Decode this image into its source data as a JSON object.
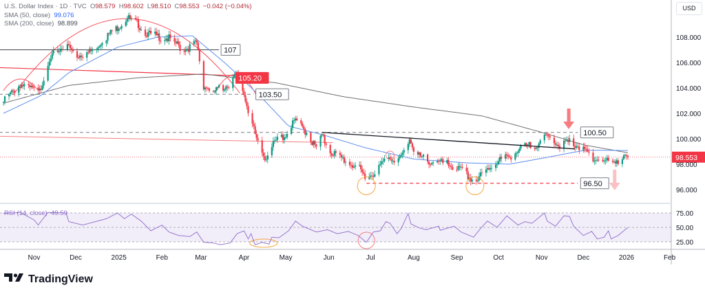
{
  "legend": {
    "symbol": "U.S. Dollar Index · 1D · TVC",
    "open_label": "O",
    "open": "98.579",
    "high_label": "H",
    "high": "98.602",
    "low_label": "L",
    "low": "98.510",
    "close_label": "C",
    "close": "98.553",
    "change": "−0.042 (−0.04%)",
    "sma50_label": "SMA (50, close)",
    "sma50_value": "99.076",
    "sma200_label": "SMA (200, close)",
    "sma200_value": "98.899",
    "rsi_label": "RSI (14, close)",
    "rsi_value": "49.59"
  },
  "currency": "USD",
  "brand": "TradingView",
  "colors": {
    "up": "#089981",
    "down": "#f23645",
    "sma50": "#5b8def",
    "sma200": "#6f6f6f",
    "rsi": "#9575cd",
    "annot_red": "#f23645",
    "circle_orange": "#f7a440"
  },
  "chart_data": {
    "type": "candlestick",
    "x_unit": "days since 2024-10-10",
    "start_date": "2024-10-10",
    "ylim": [
      95.2,
      110.6
    ],
    "price_ticks": [
      "108.000",
      "106.000",
      "104.000",
      "102.000",
      "100.000",
      "98.000",
      "96.000"
    ],
    "rsi_ticks": [
      "75.00",
      "50.00",
      "25.00"
    ],
    "rsi_levels": [
      75,
      50,
      25
    ],
    "time_ticks": [
      {
        "day": 22,
        "label": "Nov"
      },
      {
        "day": 52,
        "label": "Dec"
      },
      {
        "day": 83,
        "label": "2025"
      },
      {
        "day": 114,
        "label": "Feb"
      },
      {
        "day": 142,
        "label": "Mar"
      },
      {
        "day": 173,
        "label": "Apr"
      },
      {
        "day": 203,
        "label": "May"
      },
      {
        "day": 234,
        "label": "Jun"
      },
      {
        "day": 264,
        "label": "Jul"
      },
      {
        "day": 295,
        "label": "Aug"
      },
      {
        "day": 326,
        "label": "Sep"
      },
      {
        "day": 356,
        "label": "Oct"
      },
      {
        "day": 387,
        "label": "Nov"
      },
      {
        "day": 417,
        "label": "Dec"
      },
      {
        "day": 448,
        "label": "2026"
      },
      {
        "day": 479,
        "label": "Feb"
      }
    ],
    "close_path": [
      [
        0,
        102.9
      ],
      [
        12,
        104.3
      ],
      [
        22,
        103.8
      ],
      [
        27,
        104.2
      ],
      [
        35,
        106.5
      ],
      [
        45,
        107.5
      ],
      [
        52,
        106.5
      ],
      [
        62,
        106.8
      ],
      [
        72,
        107.8
      ],
      [
        82,
        108.8
      ],
      [
        89,
        109.5
      ],
      [
        97,
        109.0
      ],
      [
        104,
        108.2
      ],
      [
        114,
        108.0
      ],
      [
        121,
        107.8
      ],
      [
        129,
        107.0
      ],
      [
        139,
        107.5
      ],
      [
        144,
        104.2
      ],
      [
        151,
        103.7
      ],
      [
        161,
        104.2
      ],
      [
        168,
        105.0
      ],
      [
        173,
        103.5
      ],
      [
        178,
        101.5
      ],
      [
        182,
        99.8
      ],
      [
        188,
        98.5
      ],
      [
        196,
        99.8
      ],
      [
        205,
        100.5
      ],
      [
        210,
        101.5
      ],
      [
        218,
        100.5
      ],
      [
        225,
        99.2
      ],
      [
        229,
        100.2
      ],
      [
        235,
        99.0
      ],
      [
        243,
        98.5
      ],
      [
        250,
        98.0
      ],
      [
        255,
        97.8
      ],
      [
        261,
        96.8
      ],
      [
        270,
        97.8
      ],
      [
        277,
        98.6
      ],
      [
        285,
        98.3
      ],
      [
        292,
        100.0
      ],
      [
        297,
        98.7
      ],
      [
        307,
        98.2
      ],
      [
        319,
        98.0
      ],
      [
        329,
        97.5
      ],
      [
        339,
        96.6
      ],
      [
        347,
        97.5
      ],
      [
        354,
        98.2
      ],
      [
        364,
        98.6
      ],
      [
        374,
        99.3
      ],
      [
        384,
        99.6
      ],
      [
        391,
        100.2
      ],
      [
        399,
        99.5
      ],
      [
        408,
        99.8
      ],
      [
        416,
        99.2
      ],
      [
        423,
        98.6
      ],
      [
        431,
        98.2
      ],
      [
        438,
        98.3
      ],
      [
        446,
        98.4
      ],
      [
        449,
        98.553
      ]
    ],
    "sma50": [
      [
        0,
        102.0
      ],
      [
        27,
        103.4
      ],
      [
        47,
        105.2
      ],
      [
        82,
        107.2
      ],
      [
        111,
        108.0
      ],
      [
        136,
        108.1
      ],
      [
        161,
        105.8
      ],
      [
        186,
        103.2
      ],
      [
        205,
        101.0
      ],
      [
        230,
        100.3
      ],
      [
        260,
        99.3
      ],
      [
        295,
        98.4
      ],
      [
        334,
        98.1
      ],
      [
        364,
        98.0
      ],
      [
        394,
        98.6
      ],
      [
        418,
        99.1
      ],
      [
        449,
        99.076
      ]
    ],
    "sma200": [
      [
        0,
        102.8
      ],
      [
        47,
        104.2
      ],
      [
        97,
        104.8
      ],
      [
        144,
        105.1
      ],
      [
        196,
        104.4
      ],
      [
        245,
        103.3
      ],
      [
        295,
        102.5
      ],
      [
        344,
        101.8
      ],
      [
        384,
        100.6
      ],
      [
        418,
        99.5
      ],
      [
        449,
        98.899
      ]
    ],
    "rsi": [
      [
        0,
        74
      ],
      [
        12,
        76
      ],
      [
        22,
        63
      ],
      [
        25,
        54
      ],
      [
        32,
        76
      ],
      [
        45,
        75
      ],
      [
        47,
        60
      ],
      [
        57,
        54
      ],
      [
        74,
        65
      ],
      [
        82,
        75
      ],
      [
        87,
        65
      ],
      [
        92,
        73
      ],
      [
        99,
        61
      ],
      [
        106,
        44
      ],
      [
        114,
        54
      ],
      [
        119,
        42
      ],
      [
        126,
        36
      ],
      [
        134,
        34
      ],
      [
        139,
        42
      ],
      [
        144,
        24
      ],
      [
        151,
        23
      ],
      [
        156,
        20
      ],
      [
        163,
        23
      ],
      [
        168,
        39
      ],
      [
        173,
        44
      ],
      [
        176,
        30
      ],
      [
        178,
        39
      ],
      [
        181,
        20
      ],
      [
        186,
        24
      ],
      [
        191,
        21
      ],
      [
        193,
        33
      ],
      [
        198,
        32
      ],
      [
        205,
        44
      ],
      [
        210,
        61
      ],
      [
        215,
        52
      ],
      [
        225,
        42
      ],
      [
        233,
        46
      ],
      [
        240,
        39
      ],
      [
        248,
        43
      ],
      [
        255,
        36
      ],
      [
        261,
        24
      ],
      [
        266,
        42
      ],
      [
        271,
        44
      ],
      [
        275,
        60
      ],
      [
        278,
        57
      ],
      [
        283,
        39
      ],
      [
        286,
        48
      ],
      [
        291,
        74
      ],
      [
        293,
        56
      ],
      [
        299,
        49
      ],
      [
        304,
        46
      ],
      [
        313,
        52
      ],
      [
        314,
        45
      ],
      [
        324,
        52
      ],
      [
        329,
        42
      ],
      [
        338,
        33
      ],
      [
        343,
        48
      ],
      [
        348,
        61
      ],
      [
        355,
        50
      ],
      [
        362,
        70
      ],
      [
        370,
        54
      ],
      [
        375,
        60
      ],
      [
        380,
        57
      ],
      [
        389,
        75
      ],
      [
        391,
        61
      ],
      [
        397,
        52
      ],
      [
        403,
        70
      ],
      [
        407,
        69
      ],
      [
        410,
        52
      ],
      [
        417,
        36
      ],
      [
        423,
        43
      ],
      [
        427,
        30
      ],
      [
        432,
        33
      ],
      [
        435,
        44
      ],
      [
        437,
        30
      ],
      [
        442,
        36
      ],
      [
        447,
        46
      ],
      [
        449,
        49.59
      ]
    ],
    "annotations": {
      "level_107": {
        "label": "107",
        "price": 107.0,
        "from": -3,
        "to": 155
      },
      "level_105_20": {
        "label": "105.20",
        "price_start": 105.6,
        "price_end": 104.95,
        "from": -3,
        "to": 171
      },
      "level_103_50": {
        "label": "103.50",
        "price": 103.5,
        "from": -3,
        "to": 180
      },
      "level_100_50": {
        "label": "100.50",
        "price": 100.5,
        "from": -3,
        "to": 413
      },
      "level_96_50": {
        "label": "96.50",
        "price": 96.5,
        "from": 261,
        "to": 413
      },
      "pink_line": {
        "price_start": 100.2,
        "price_end": 99.7,
        "from": -3,
        "to": 237
      },
      "trendline": {
        "p1": [
          229,
          100.5
        ],
        "p2": [
          411,
          99.2
        ]
      },
      "last_price": "98.553"
    }
  }
}
